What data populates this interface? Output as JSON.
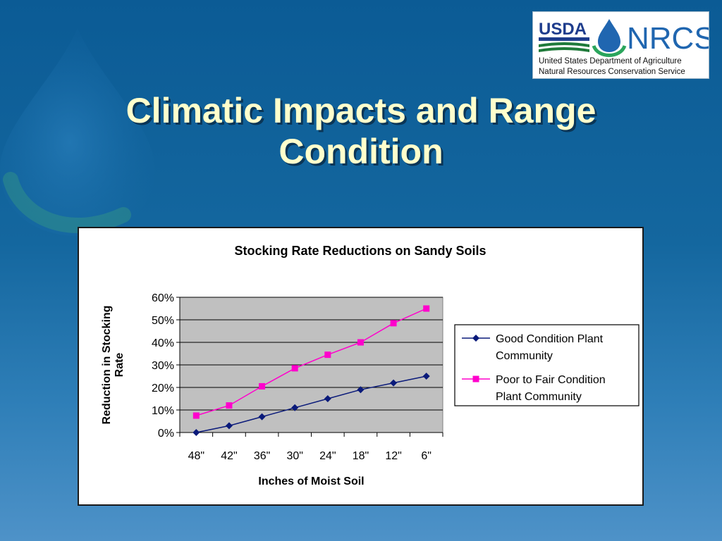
{
  "slide": {
    "title_line1": "Climatic Impacts and Range",
    "title_line2": "Condition"
  },
  "logo": {
    "usda": "USDA",
    "nrcs": "NRCS",
    "line1": "United States Department of Agriculture",
    "line2": "Natural Resources Conservation Service"
  },
  "chart_data": {
    "type": "line",
    "title": "Stocking Rate Reductions on Sandy Soils",
    "xlabel": "Inches of Moist Soil",
    "ylabel_lines": [
      "Reduction in Stocking",
      "Rate"
    ],
    "categories": [
      "48\"",
      "42\"",
      "36\"",
      "30\"",
      "24\"",
      "18\"",
      "12\"",
      "6\""
    ],
    "y_ticks": [
      "0%",
      "10%",
      "20%",
      "30%",
      "40%",
      "50%",
      "60%"
    ],
    "ylim": [
      0,
      0.6
    ],
    "grid": true,
    "legend_position": "right",
    "series": [
      {
        "name_lines": [
          "Good Condition Plant",
          "Community"
        ],
        "values": [
          0.0,
          0.03,
          0.07,
          0.11,
          0.15,
          0.19,
          0.22,
          0.25
        ],
        "color": "#0a1a7a",
        "marker": "diamond"
      },
      {
        "name_lines": [
          "Poor to Fair Condition",
          "Plant Community"
        ],
        "values": [
          0.075,
          0.12,
          0.205,
          0.285,
          0.345,
          0.4,
          0.485,
          0.55
        ],
        "color": "#ff00cc",
        "marker": "square"
      }
    ]
  },
  "colors": {
    "plot_bg": "#c0c0c0",
    "title_text": "#ffffcc",
    "slide_bg": "#14679f"
  }
}
